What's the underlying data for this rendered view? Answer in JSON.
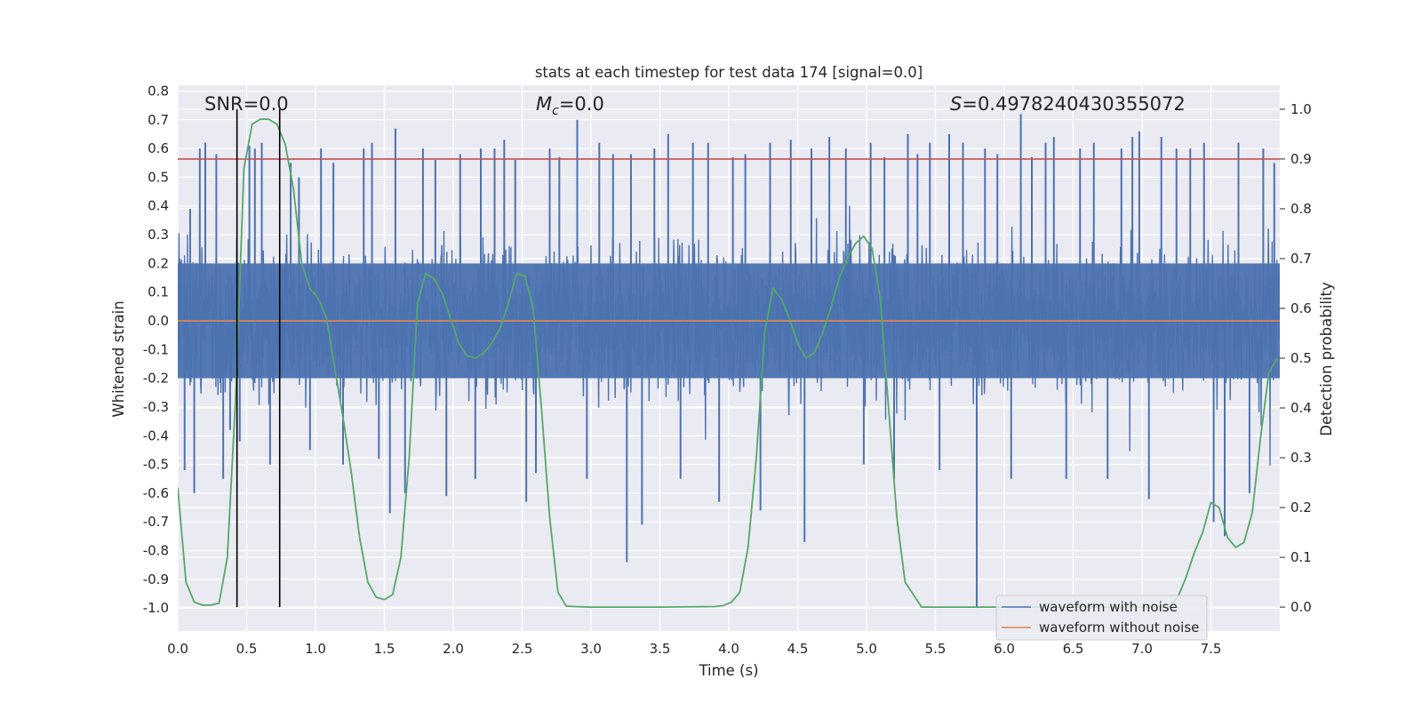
{
  "chart_data": {
    "type": "line",
    "title": "stats at each timestep for test data 174 [signal=0.0]",
    "xlabel": "Time (s)",
    "ylabel": "Whitened strain",
    "y2label": "Detection probability",
    "xlim": [
      0.0,
      8.0
    ],
    "ylim": [
      -1.08,
      0.82
    ],
    "y2lim": [
      -0.048,
      1.048
    ],
    "xticks": [
      "0.0",
      "0.5",
      "1.0",
      "1.5",
      "2.0",
      "2.5",
      "3.0",
      "3.5",
      "4.0",
      "4.5",
      "5.0",
      "5.5",
      "6.0",
      "6.5",
      "7.0",
      "7.5"
    ],
    "yticks": [
      "0.8",
      "0.7",
      "0.6",
      "0.5",
      "0.4",
      "0.3",
      "0.2",
      "0.1",
      "0.0",
      "-0.1",
      "-0.2",
      "-0.3",
      "-0.4",
      "-0.5",
      "-0.6",
      "-0.7",
      "-0.8",
      "-0.9",
      "-1.0"
    ],
    "y2ticks": [
      "1.0",
      "0.9",
      "0.8",
      "0.7",
      "0.6",
      "0.5",
      "0.4",
      "0.3",
      "0.2",
      "0.1",
      "0.0"
    ],
    "grid": true,
    "legend_position": "lower-right",
    "annotations": {
      "snr": "SNR=0.0",
      "mc_symbol": "M",
      "mc_sub": "c",
      "mc_value": "=0.0",
      "s_symbol": "S",
      "s_value": "=0.4978240430355072"
    },
    "threshold_y2": 0.9,
    "vertical_markers_x": [
      0.43,
      0.74
    ],
    "series": [
      {
        "name": "waveform with noise",
        "color": "#4c72b0",
        "axis": "left",
        "description": "whitened strain noise, band roughly -0.2 to 0.2 with spikes up to about 0.72 and down to -1.0",
        "spikes": [
          [
            0.05,
            -0.52
          ],
          [
            0.09,
            0.39
          ],
          [
            0.12,
            -0.6
          ],
          [
            0.16,
            0.6
          ],
          [
            0.2,
            0.62
          ],
          [
            0.28,
            0.58
          ],
          [
            0.33,
            -0.55
          ],
          [
            0.38,
            -0.38
          ],
          [
            0.45,
            -0.42
          ],
          [
            0.52,
            0.61
          ],
          [
            0.56,
            0.6
          ],
          [
            0.61,
            0.62
          ],
          [
            0.67,
            -0.5
          ],
          [
            0.82,
            0.55
          ],
          [
            0.88,
            0.5
          ],
          [
            0.96,
            -0.45
          ],
          [
            1.04,
            0.6
          ],
          [
            1.13,
            0.55
          ],
          [
            1.2,
            -0.5
          ],
          [
            1.35,
            0.6
          ],
          [
            1.41,
            0.62
          ],
          [
            1.46,
            -0.48
          ],
          [
            1.54,
            -0.67
          ],
          [
            1.58,
            0.67
          ],
          [
            1.65,
            -0.6
          ],
          [
            1.78,
            0.6
          ],
          [
            1.87,
            0.56
          ],
          [
            1.95,
            -0.61
          ],
          [
            2.05,
            0.58
          ],
          [
            2.16,
            -0.55
          ],
          [
            2.2,
            0.6
          ],
          [
            2.3,
            0.6
          ],
          [
            2.37,
            0.63
          ],
          [
            2.45,
            0.56
          ],
          [
            2.53,
            -0.63
          ],
          [
            2.6,
            -0.53
          ],
          [
            2.7,
            0.6
          ],
          [
            2.77,
            0.57
          ],
          [
            2.9,
            0.7
          ],
          [
            2.97,
            -0.55
          ],
          [
            3.06,
            0.62
          ],
          [
            3.16,
            0.58
          ],
          [
            3.26,
            -0.84
          ],
          [
            3.29,
            0.58
          ],
          [
            3.37,
            -0.71
          ],
          [
            3.46,
            0.6
          ],
          [
            3.56,
            0.65
          ],
          [
            3.65,
            -0.55
          ],
          [
            3.74,
            0.62
          ],
          [
            3.85,
            0.62
          ],
          [
            3.93,
            -0.63
          ],
          [
            4.03,
            0.57
          ],
          [
            4.12,
            0.58
          ],
          [
            4.23,
            -0.66
          ],
          [
            4.3,
            0.62
          ],
          [
            4.45,
            0.63
          ],
          [
            4.55,
            -0.77
          ],
          [
            4.6,
            0.6
          ],
          [
            4.73,
            0.64
          ],
          [
            4.85,
            0.6
          ],
          [
            4.98,
            -0.5
          ],
          [
            5.03,
            0.62
          ],
          [
            5.13,
            0.57
          ],
          [
            5.2,
            -0.55
          ],
          [
            5.3,
            0.65
          ],
          [
            5.37,
            0.58
          ],
          [
            5.46,
            0.62
          ],
          [
            5.53,
            -0.52
          ],
          [
            5.6,
            0.65
          ],
          [
            5.7,
            0.62
          ],
          [
            5.8,
            -1.0
          ],
          [
            5.86,
            0.6
          ],
          [
            5.95,
            0.58
          ],
          [
            6.05,
            -0.55
          ],
          [
            6.12,
            0.72
          ],
          [
            6.2,
            0.57
          ],
          [
            6.3,
            0.62
          ],
          [
            6.36,
            0.64
          ],
          [
            6.45,
            -0.55
          ],
          [
            6.55,
            0.6
          ],
          [
            6.65,
            0.62
          ],
          [
            6.75,
            -0.55
          ],
          [
            6.85,
            0.6
          ],
          [
            6.93,
            0.64
          ],
          [
            6.98,
            0.66
          ],
          [
            7.05,
            -0.62
          ],
          [
            7.14,
            0.64
          ],
          [
            7.25,
            0.6
          ],
          [
            7.35,
            0.6
          ],
          [
            7.45,
            0.62
          ],
          [
            7.52,
            -0.7
          ],
          [
            7.6,
            -0.75
          ],
          [
            7.7,
            0.62
          ],
          [
            7.78,
            -0.6
          ],
          [
            7.88,
            0.6
          ],
          [
            7.96,
            0.55
          ]
        ]
      },
      {
        "name": "waveform without noise",
        "color": "#dd8452",
        "axis": "left",
        "x": [
          0.0,
          8.0
        ],
        "values": [
          0.0,
          0.0
        ]
      },
      {
        "name": "detection probability",
        "color": "#55a868",
        "axis": "right",
        "x": [
          0.0,
          0.06,
          0.12,
          0.18,
          0.24,
          0.3,
          0.36,
          0.42,
          0.48,
          0.54,
          0.6,
          0.66,
          0.72,
          0.78,
          0.84,
          0.9,
          0.96,
          1.02,
          1.08,
          1.14,
          1.2,
          1.26,
          1.32,
          1.38,
          1.44,
          1.5,
          1.56,
          1.62,
          1.68,
          1.74,
          1.8,
          1.86,
          1.92,
          1.98,
          2.04,
          2.1,
          2.16,
          2.22,
          2.28,
          2.34,
          2.4,
          2.46,
          2.52,
          2.58,
          2.64,
          2.7,
          2.76,
          2.82,
          2.88,
          3.0,
          3.5,
          3.9,
          3.96,
          4.02,
          4.08,
          4.14,
          4.2,
          4.26,
          4.32,
          4.38,
          4.44,
          4.5,
          4.56,
          4.62,
          4.68,
          4.74,
          4.8,
          4.86,
          4.92,
          4.98,
          5.04,
          5.1,
          5.16,
          5.22,
          5.28,
          5.4,
          6.0,
          7.0,
          7.2,
          7.26,
          7.32,
          7.38,
          7.44,
          7.5,
          7.56,
          7.62,
          7.68,
          7.74,
          7.8,
          7.86,
          7.92,
          7.98
        ],
        "values": [
          0.24,
          0.05,
          0.01,
          0.004,
          0.004,
          0.008,
          0.1,
          0.42,
          0.88,
          0.97,
          0.98,
          0.98,
          0.97,
          0.93,
          0.84,
          0.69,
          0.64,
          0.62,
          0.58,
          0.48,
          0.38,
          0.27,
          0.14,
          0.05,
          0.02,
          0.015,
          0.025,
          0.1,
          0.3,
          0.61,
          0.67,
          0.66,
          0.63,
          0.58,
          0.53,
          0.505,
          0.5,
          0.51,
          0.53,
          0.56,
          0.61,
          0.67,
          0.665,
          0.6,
          0.4,
          0.18,
          0.03,
          0.002,
          0.001,
          0.0,
          0.0,
          0.001,
          0.003,
          0.01,
          0.03,
          0.12,
          0.3,
          0.55,
          0.64,
          0.62,
          0.58,
          0.53,
          0.5,
          0.51,
          0.55,
          0.6,
          0.66,
          0.7,
          0.73,
          0.745,
          0.72,
          0.62,
          0.4,
          0.18,
          0.05,
          0.0,
          0.0,
          0.0,
          0.0,
          0.02,
          0.06,
          0.11,
          0.15,
          0.21,
          0.2,
          0.14,
          0.12,
          0.13,
          0.19,
          0.34,
          0.47,
          0.5
        ]
      }
    ]
  }
}
